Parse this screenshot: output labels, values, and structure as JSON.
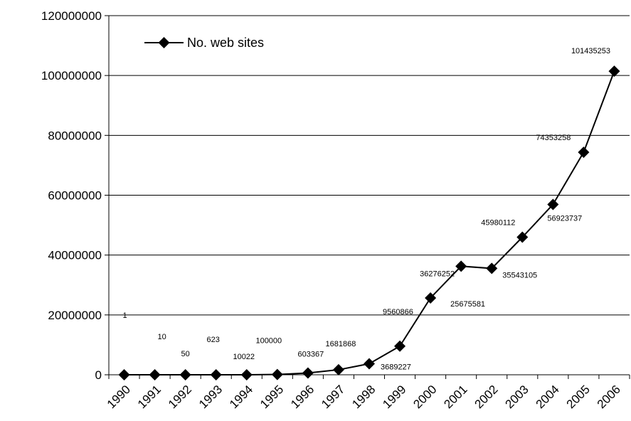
{
  "chart_data": {
    "type": "line",
    "x": [
      "1990",
      "1991",
      "1992",
      "1993",
      "1994",
      "1995",
      "1996",
      "1997",
      "1998",
      "1999",
      "2000",
      "2001",
      "2002",
      "2003",
      "2004",
      "2005",
      "2006"
    ],
    "series": [
      {
        "name": "No. web sites",
        "values": [
          1,
          10,
          50,
          623,
          10022,
          100000,
          603367,
          1681868,
          3689227,
          9560866,
          25675581,
          36276252,
          35543105,
          45980112,
          56923737,
          74353258,
          101435253
        ],
        "labels": [
          "1",
          "10",
          "50",
          "623",
          "10022",
          "100000",
          "603367",
          "1681868",
          "3689227",
          "9560866",
          "25675581",
          "36276252",
          "35543105",
          "45980112",
          "56923737",
          "74353258",
          "101435253"
        ]
      }
    ],
    "yticks": [
      "0",
      "20000000",
      "40000000",
      "60000000",
      "80000000",
      "100000000",
      "120000000"
    ],
    "ylim": [
      0,
      120000000
    ],
    "grid": true,
    "legend": "top-left",
    "colors": {
      "line": "#000000",
      "marker": "#000000",
      "grid": "#000000"
    }
  }
}
